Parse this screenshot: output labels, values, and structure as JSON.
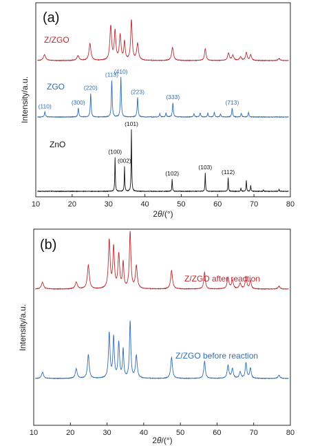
{
  "chart_data": [
    {
      "type": "line",
      "panel_label": "(a)",
      "xlabel_prefix": "2",
      "xlabel_theta": "θ",
      "xlabel_suffix": "/(°)",
      "ylabel": "Intensity/a.u.",
      "xlim": [
        10,
        80
      ],
      "xticks": [
        "10",
        "20",
        "30",
        "40",
        "50",
        "60",
        "70",
        "80"
      ],
      "series": [
        {
          "name": "Z/ZGO",
          "color": "#c0282e",
          "peaks": [
            [
              12.4,
              0.15,
              0.35
            ],
            [
              21.6,
              0.12,
              0.35
            ],
            [
              24.9,
              0.42,
              0.32
            ],
            [
              30.6,
              0.85,
              0.28
            ],
            [
              31.8,
              0.72,
              0.25
            ],
            [
              33.2,
              0.62,
              0.28
            ],
            [
              34.4,
              0.45,
              0.22
            ],
            [
              36.3,
              1.0,
              0.25
            ],
            [
              38.0,
              0.42,
              0.3
            ],
            [
              47.6,
              0.33,
              0.3
            ],
            [
              56.6,
              0.3,
              0.25
            ],
            [
              63.0,
              0.18,
              0.3
            ],
            [
              64.2,
              0.13,
              0.3
            ],
            [
              66.3,
              0.09,
              0.3
            ],
            [
              67.9,
              0.2,
              0.25
            ],
            [
              69.1,
              0.15,
              0.25
            ],
            [
              76.9,
              0.05,
              0.3
            ]
          ]
        },
        {
          "name": "ZGO",
          "color": "#2f6db5",
          "peaks": [
            [
              12.5,
              0.13,
              0.15
            ],
            [
              21.7,
              0.22,
              0.15
            ],
            [
              25.1,
              0.58,
              0.14
            ],
            [
              30.9,
              0.9,
              0.14
            ],
            [
              33.4,
              0.98,
              0.14
            ],
            [
              38.0,
              0.48,
              0.15
            ],
            [
              44.1,
              0.08,
              0.15
            ],
            [
              45.8,
              0.1,
              0.15
            ],
            [
              47.7,
              0.35,
              0.15
            ],
            [
              53.5,
              0.08,
              0.15
            ],
            [
              55.2,
              0.1,
              0.15
            ],
            [
              57.3,
              0.09,
              0.15
            ],
            [
              59.1,
              0.11,
              0.15
            ],
            [
              60.8,
              0.07,
              0.15
            ],
            [
              64.0,
              0.22,
              0.15
            ],
            [
              66.5,
              0.09,
              0.15
            ],
            [
              68.5,
              0.11,
              0.15
            ]
          ],
          "peak_labels": [
            {
              "text": "(110)",
              "x": 12.5
            },
            {
              "text": "(300)",
              "x": 21.7
            },
            {
              "text": "(220)",
              "x": 25.1
            },
            {
              "text": "(113)",
              "x": 30.9
            },
            {
              "text": "(410)",
              "x": 33.4
            },
            {
              "text": "(223)",
              "x": 38.0
            },
            {
              "text": "(333)",
              "x": 47.7
            },
            {
              "text": "(713)",
              "x": 64.0
            }
          ]
        },
        {
          "name": "ZnO",
          "color": "#111111",
          "peaks": [
            [
              31.8,
              0.55,
              0.09
            ],
            [
              34.4,
              0.4,
              0.09
            ],
            [
              36.3,
              1.0,
              0.09
            ],
            [
              47.5,
              0.2,
              0.09
            ],
            [
              56.6,
              0.3,
              0.09
            ],
            [
              62.9,
              0.22,
              0.09
            ],
            [
              66.4,
              0.05,
              0.09
            ],
            [
              67.9,
              0.18,
              0.09
            ],
            [
              69.1,
              0.1,
              0.09
            ],
            [
              72.6,
              0.02,
              0.09
            ],
            [
              76.9,
              0.03,
              0.09
            ]
          ],
          "peak_labels": [
            {
              "text": "(100)",
              "x": 31.8
            },
            {
              "text": "(002)",
              "x": 34.4
            },
            {
              "text": "(101)",
              "x": 36.3
            },
            {
              "text": "(102)",
              "x": 47.5
            },
            {
              "text": "(103)",
              "x": 56.6
            },
            {
              "text": "(112)",
              "x": 62.9
            }
          ]
        }
      ]
    },
    {
      "type": "line",
      "panel_label": "(b)",
      "xlabel_prefix": "2",
      "xlabel_theta": "θ",
      "xlabel_suffix": "/(°)",
      "ylabel": "Intensity/a.u.",
      "xlim": [
        10,
        80
      ],
      "xticks": [
        "10",
        "20",
        "30",
        "40",
        "50",
        "60",
        "70",
        "80"
      ],
      "series": [
        {
          "name": "Z/ZGO after reaction",
          "color": "#c0282e",
          "peaks": [
            [
              12.4,
              0.12,
              0.35
            ],
            [
              21.6,
              0.12,
              0.35
            ],
            [
              24.9,
              0.42,
              0.32
            ],
            [
              30.6,
              0.85,
              0.28
            ],
            [
              31.8,
              0.72,
              0.25
            ],
            [
              33.2,
              0.6,
              0.28
            ],
            [
              34.4,
              0.45,
              0.22
            ],
            [
              36.3,
              1.0,
              0.25
            ],
            [
              38.0,
              0.4,
              0.3
            ],
            [
              47.6,
              0.33,
              0.3
            ],
            [
              56.6,
              0.3,
              0.25
            ],
            [
              63.0,
              0.2,
              0.3
            ],
            [
              64.2,
              0.15,
              0.3
            ],
            [
              66.3,
              0.1,
              0.3
            ],
            [
              67.9,
              0.22,
              0.25
            ],
            [
              69.1,
              0.15,
              0.25
            ],
            [
              76.9,
              0.05,
              0.3
            ]
          ]
        },
        {
          "name": "Z/ZGO before reaction",
          "color": "#2f6db5",
          "peaks": [
            [
              12.4,
              0.1,
              0.3
            ],
            [
              21.6,
              0.15,
              0.3
            ],
            [
              24.9,
              0.37,
              0.28
            ],
            [
              30.6,
              0.7,
              0.25
            ],
            [
              31.8,
              0.63,
              0.22
            ],
            [
              33.2,
              0.55,
              0.25
            ],
            [
              34.4,
              0.44,
              0.2
            ],
            [
              36.3,
              0.88,
              0.22
            ],
            [
              38.0,
              0.35,
              0.28
            ],
            [
              47.6,
              0.33,
              0.28
            ],
            [
              56.6,
              0.27,
              0.25
            ],
            [
              63.0,
              0.2,
              0.28
            ],
            [
              64.2,
              0.15,
              0.28
            ],
            [
              66.3,
              0.1,
              0.28
            ],
            [
              67.9,
              0.24,
              0.25
            ],
            [
              69.1,
              0.16,
              0.25
            ],
            [
              76.9,
              0.05,
              0.3
            ]
          ]
        }
      ]
    }
  ]
}
